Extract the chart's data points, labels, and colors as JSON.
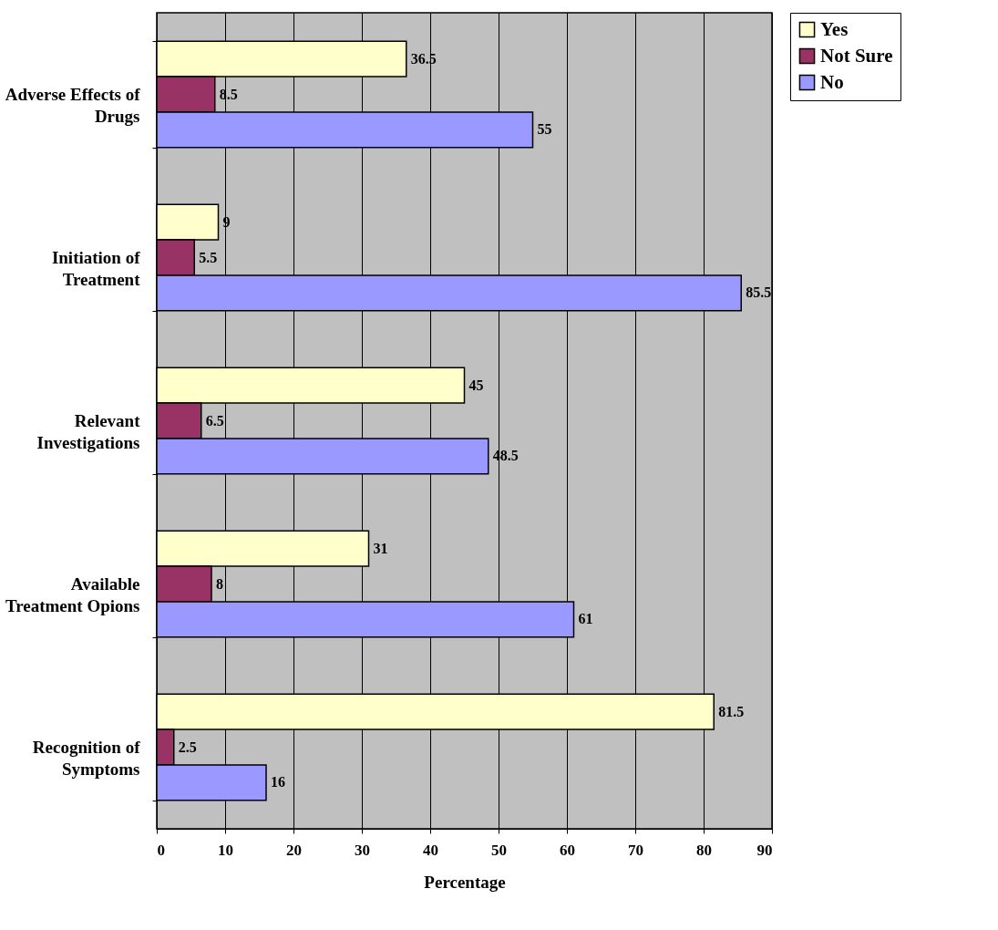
{
  "chart_data": {
    "type": "bar",
    "orientation": "horizontal",
    "xlabel": "Percentage",
    "categories": [
      "Adverse Effects of\nDrugs",
      "Initiation of\nTreatment",
      "Relevant\nInvestigations",
      "Available\nTreatment Opions",
      "Recognition of\nSymptoms"
    ],
    "series": [
      {
        "name": "Yes",
        "color": "#ffffcc",
        "values": [
          36.5,
          9,
          45,
          31,
          81.5
        ]
      },
      {
        "name": "Not Sure",
        "color": "#993366",
        "values": [
          8.5,
          5.5,
          6.5,
          8,
          2.5
        ]
      },
      {
        "name": "No",
        "color": "#9999ff",
        "values": [
          55,
          85.5,
          48.5,
          61,
          16
        ]
      }
    ],
    "xlim": [
      0,
      90
    ],
    "xticks": [
      0,
      10,
      20,
      30,
      40,
      50,
      60,
      70,
      80,
      90
    ],
    "grid": "x",
    "legend": "right",
    "data_labels": true
  }
}
